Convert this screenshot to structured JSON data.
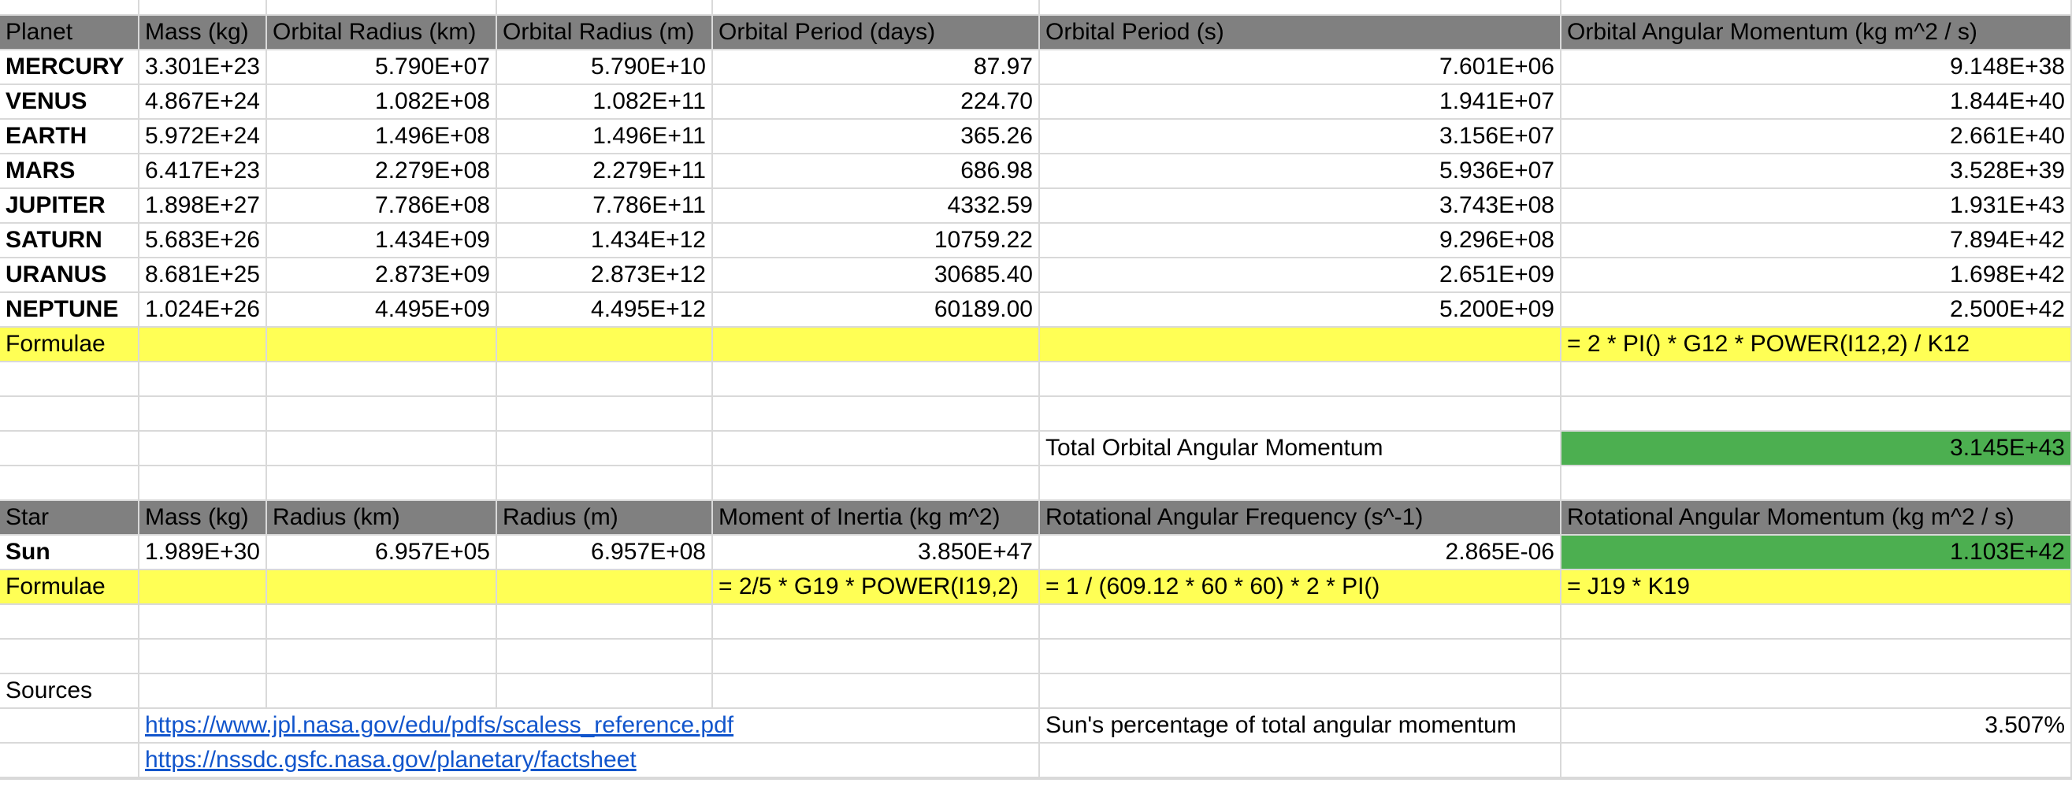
{
  "colors": {
    "header_fill": "#808080",
    "formula_fill": "#ffff55",
    "result_fill": "#4caf50",
    "link": "#1155cc",
    "gridline": "#d9d9d9"
  },
  "planets_table": {
    "headers": [
      "Planet",
      "Mass (kg)",
      "Orbital Radius (km)",
      "Orbital Radius (m)",
      "Orbital Period (days)",
      "Orbital Period (s)",
      "Orbital Angular Momentum (kg m^2 / s)"
    ],
    "rows": [
      [
        "MERCURY",
        "3.301E+23",
        "5.790E+07",
        "5.790E+10",
        "87.97",
        "7.601E+06",
        "9.148E+38"
      ],
      [
        "VENUS",
        "4.867E+24",
        "1.082E+08",
        "1.082E+11",
        "224.70",
        "1.941E+07",
        "1.844E+40"
      ],
      [
        "EARTH",
        "5.972E+24",
        "1.496E+08",
        "1.496E+11",
        "365.26",
        "3.156E+07",
        "2.661E+40"
      ],
      [
        "MARS",
        "6.417E+23",
        "2.279E+08",
        "2.279E+11",
        "686.98",
        "5.936E+07",
        "3.528E+39"
      ],
      [
        "JUPITER",
        "1.898E+27",
        "7.786E+08",
        "7.786E+11",
        "4332.59",
        "3.743E+08",
        "1.931E+43"
      ],
      [
        "SATURN",
        "5.683E+26",
        "1.434E+09",
        "1.434E+12",
        "10759.22",
        "9.296E+08",
        "7.894E+42"
      ],
      [
        "URANUS",
        "8.681E+25",
        "2.873E+09",
        "2.873E+12",
        "30685.40",
        "2.651E+09",
        "1.698E+42"
      ],
      [
        "NEPTUNE",
        "1.024E+26",
        "4.495E+09",
        "4.495E+12",
        "60189.00",
        "5.200E+09",
        "2.500E+42"
      ]
    ],
    "formulae_label": "Formulae",
    "formula_g": "= 2 * PI() * G12 * POWER(I12,2) / K12",
    "total_label": "Total Orbital Angular Momentum",
    "total_value": "3.145E+43"
  },
  "star_table": {
    "headers": [
      "Star",
      "Mass (kg)",
      "Radius (km)",
      "Radius (m)",
      "Moment of Inertia (kg m^2)",
      "Rotational Angular Frequency (s^-1)",
      "Rotational Angular Momentum (kg m^2 / s)"
    ],
    "row": [
      "Sun",
      "1.989E+30",
      "6.957E+05",
      "6.957E+08",
      "3.850E+47",
      "2.865E-06",
      "1.103E+42"
    ],
    "formulae_label": "Formulae",
    "formula_e": "= 2/5 * G19 * POWER(I19,2)",
    "formula_f": "= 1 / (609.12 * 60 * 60) * 2 * PI()",
    "formula_g": "= J19 * K19"
  },
  "sources": {
    "label": "Sources",
    "links": [
      "https://www.jpl.nasa.gov/edu/pdfs/scaless_reference.pdf",
      "https://nssdc.gsfc.nasa.gov/planetary/factsheet"
    ],
    "percentage_label": "Sun's percentage of total angular momentum",
    "percentage_value": "3.507%"
  }
}
